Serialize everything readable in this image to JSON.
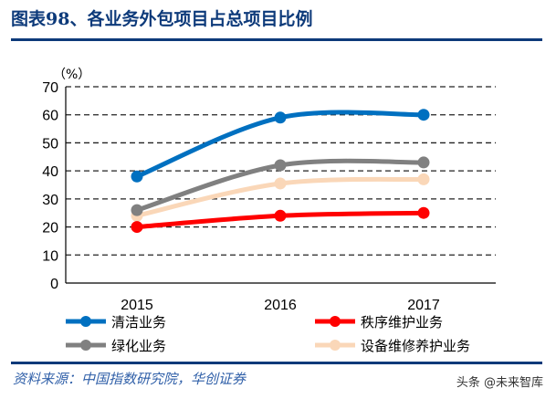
{
  "title": "图表98、各业务外包项目占总项目比例",
  "source": "资料来源：中国指数研究院，华创证券",
  "watermark": "头条 @未来智库",
  "chart_data": {
    "type": "line",
    "title": "",
    "ylabel": "（%）",
    "xlabel": "",
    "categories": [
      "2015",
      "2016",
      "2017"
    ],
    "ylim": [
      0,
      70
    ],
    "yticks": [
      0,
      10,
      20,
      30,
      40,
      50,
      60,
      70
    ],
    "grid": true,
    "legend_position": "bottom",
    "series": [
      {
        "name": "清洁业务",
        "color": "#0070c0",
        "values": [
          38,
          59,
          60
        ]
      },
      {
        "name": "秩序维护业务",
        "color": "#ff0000",
        "values": [
          20,
          24,
          25
        ]
      },
      {
        "name": "绿化业务",
        "color": "#808080",
        "values": [
          26,
          42,
          43
        ]
      },
      {
        "name": "设备维修养护业务",
        "color": "#fad7b8",
        "values": [
          24,
          35.5,
          37
        ]
      }
    ]
  }
}
